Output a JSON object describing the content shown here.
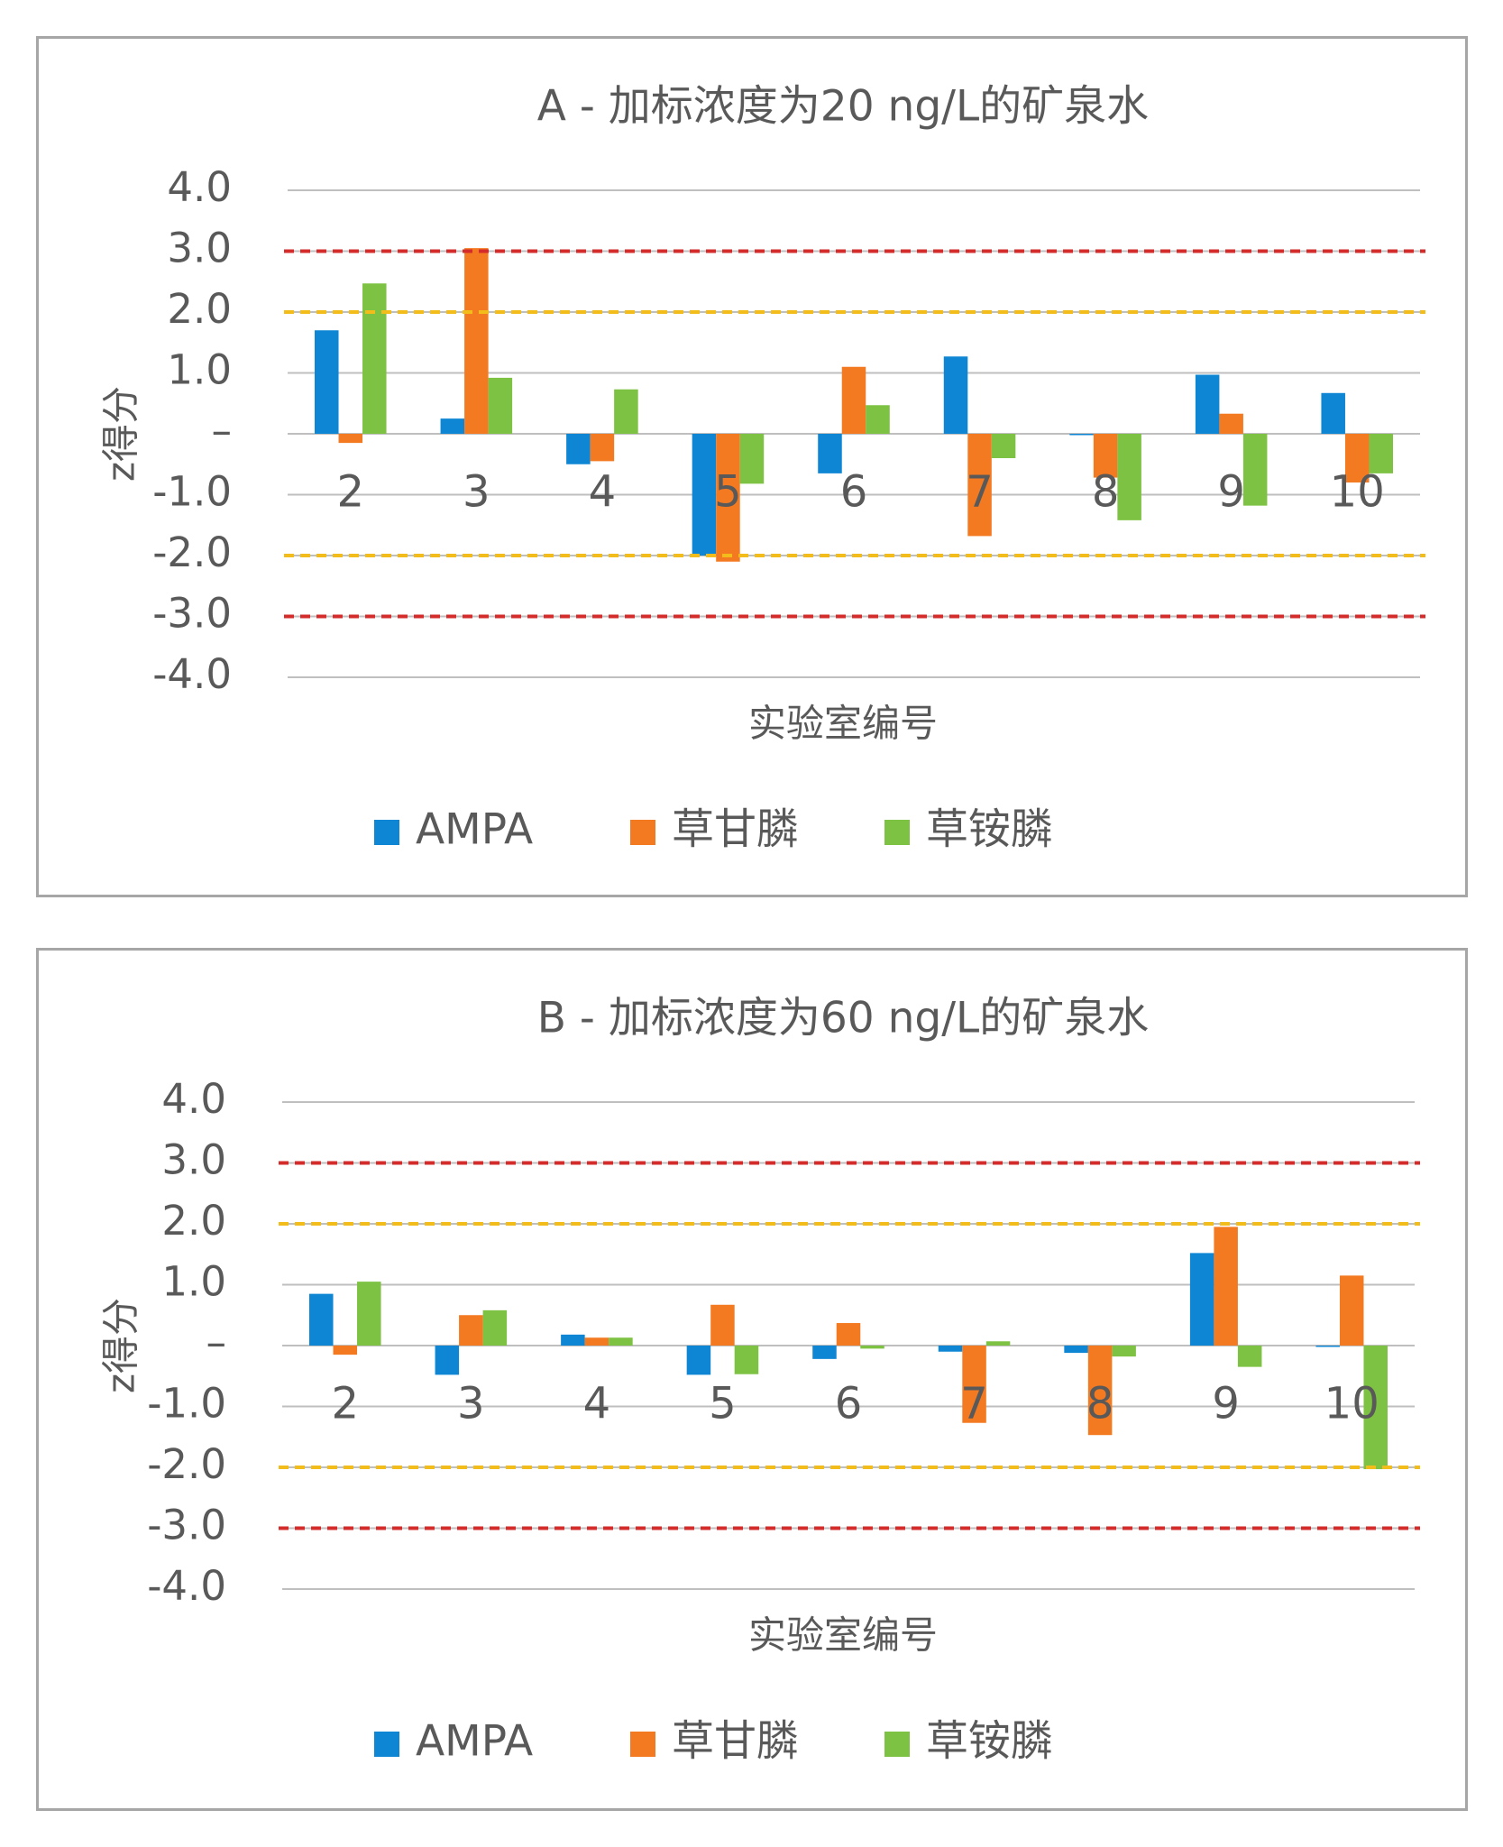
{
  "chart_data": [
    {
      "type": "bar",
      "title": "A - 加标浓度为20 ng/L的矿泉水",
      "xlabel": "实验室编号",
      "ylabel": "z得分",
      "ylim": [
        -4,
        4
      ],
      "yticks": [
        4,
        3,
        2,
        1,
        0,
        -1,
        -2,
        -3,
        -4
      ],
      "ytick_labels": [
        "4.0",
        "3.0",
        "2.0",
        "1.0",
        "–",
        "-1.0",
        "-2.0",
        "-3.0",
        "-4.0"
      ],
      "categories": [
        "2",
        "3",
        "4",
        "5",
        "6",
        "7",
        "8",
        "9",
        "10"
      ],
      "series": [
        {
          "name": "AMPA",
          "color": "#0e86d4",
          "values": [
            1.7,
            0.25,
            -0.5,
            -2.0,
            -0.65,
            1.27,
            -0.02,
            0.97,
            0.67
          ]
        },
        {
          "name": "草甘膦",
          "color": "#f47a22",
          "values": [
            -0.15,
            3.05,
            -0.45,
            -2.1,
            1.1,
            -1.68,
            -0.72,
            0.33,
            -0.8
          ]
        },
        {
          "name": "草铵膦",
          "color": "#7dc242",
          "values": [
            2.47,
            0.92,
            0.73,
            -0.82,
            0.47,
            -0.4,
            -1.42,
            -1.18,
            -0.65
          ]
        }
      ],
      "reference_lines": [
        {
          "y": 3,
          "color": "#d42b2b"
        },
        {
          "y": 2,
          "color": "#f2bc1b"
        },
        {
          "y": -2,
          "color": "#f2bc1b"
        },
        {
          "y": -3,
          "color": "#d42b2b"
        }
      ],
      "grid": true,
      "legend_position": "bottom"
    },
    {
      "type": "bar",
      "title": "B - 加标浓度为60 ng/L的矿泉水",
      "xlabel": "实验室编号",
      "ylabel": "z得分",
      "ylim": [
        -4,
        4
      ],
      "yticks": [
        4,
        3,
        2,
        1,
        0,
        -1,
        -2,
        -3,
        -4
      ],
      "ytick_labels": [
        "4.0",
        "3.0",
        "2.0",
        "1.0",
        "–",
        "-1.0",
        "-2.0",
        "-3.0",
        "-4.0"
      ],
      "categories": [
        "2",
        "3",
        "4",
        "5",
        "6",
        "7",
        "8",
        "9",
        "10"
      ],
      "series": [
        {
          "name": "AMPA",
          "color": "#0e86d4",
          "values": [
            0.85,
            -0.48,
            0.18,
            -0.48,
            -0.22,
            -0.1,
            -0.12,
            1.52,
            -0.02
          ]
        },
        {
          "name": "草甘膦",
          "color": "#f47a22",
          "values": [
            -0.15,
            0.5,
            0.13,
            0.67,
            0.37,
            -1.27,
            -1.47,
            1.95,
            1.15
          ]
        },
        {
          "name": "草铵膦",
          "color": "#7dc242",
          "values": [
            1.05,
            0.58,
            0.13,
            -0.47,
            -0.05,
            0.07,
            -0.18,
            -0.35,
            -2.03
          ]
        }
      ],
      "reference_lines": [
        {
          "y": 3,
          "color": "#d42b2b"
        },
        {
          "y": 2,
          "color": "#f2bc1b"
        },
        {
          "y": -2,
          "color": "#f2bc1b"
        },
        {
          "y": -3,
          "color": "#d42b2b"
        }
      ],
      "grid": true,
      "legend_position": "bottom"
    }
  ]
}
